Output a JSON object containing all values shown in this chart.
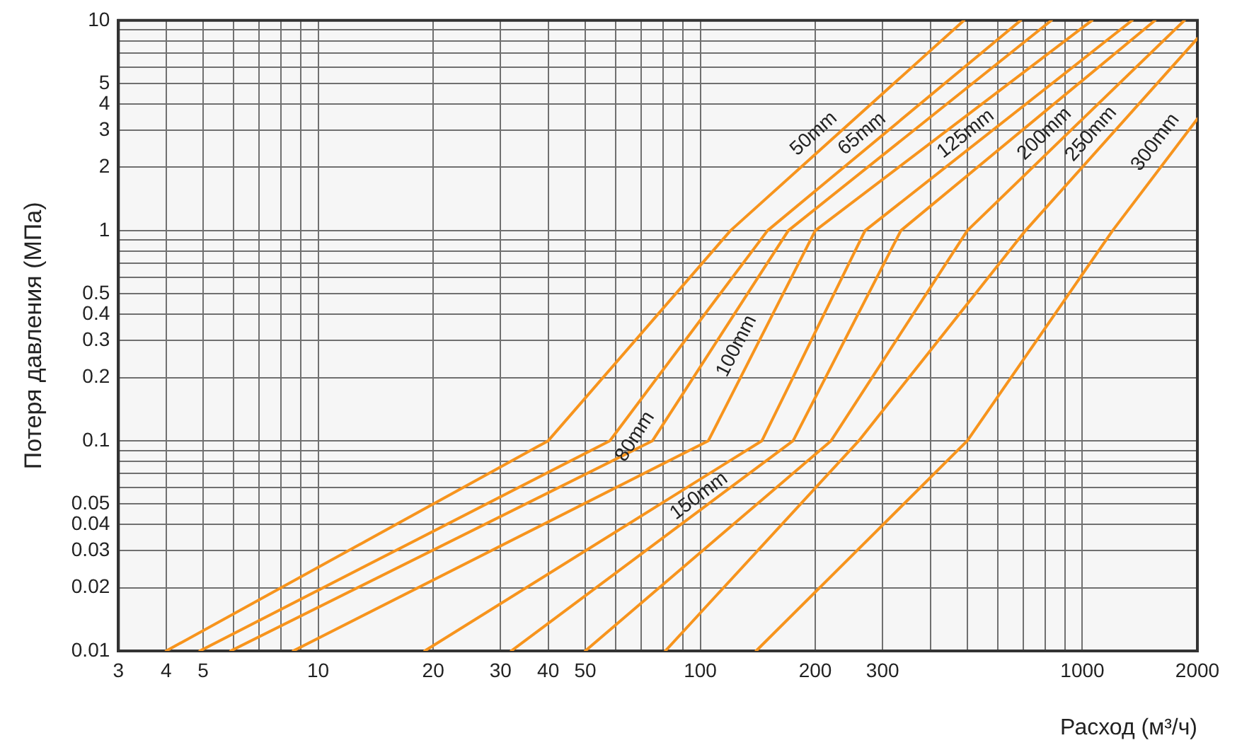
{
  "chart_data": {
    "type": "line",
    "xlabel": "Расход (м³/ч)",
    "ylabel": "Потеря давления (МПа)",
    "log": "xy",
    "grid": true,
    "xlim": [
      3,
      2000
    ],
    "ylim": [
      0.01,
      10
    ],
    "xticks": [
      3,
      4,
      5,
      {
        "value": 6,
        "label": null
      },
      {
        "value": 7,
        "label": null
      },
      {
        "value": 8,
        "label": null
      },
      {
        "value": 9,
        "label": null
      },
      10,
      20,
      30,
      40,
      50,
      {
        "value": 60,
        "label": null
      },
      {
        "value": 70,
        "label": null
      },
      {
        "value": 80,
        "label": null
      },
      {
        "value": 90,
        "label": null
      },
      100,
      200,
      300,
      {
        "value": 400,
        "label": null
      },
      {
        "value": 500,
        "label": null
      },
      {
        "value": 600,
        "label": null
      },
      {
        "value": 700,
        "label": null
      },
      {
        "value": 800,
        "label": null
      },
      {
        "value": 900,
        "label": null
      },
      1000,
      2000
    ],
    "yticks": [
      0.01,
      0.02,
      0.03,
      0.04,
      0.05,
      {
        "value": 0.06,
        "label": null
      },
      {
        "value": 0.07,
        "label": null
      },
      {
        "value": 0.08,
        "label": null
      },
      {
        "value": 0.09,
        "label": null
      },
      0.1,
      0.2,
      0.3,
      0.4,
      0.5,
      {
        "value": 0.6,
        "label": null
      },
      {
        "value": 0.7,
        "label": null
      },
      {
        "value": 0.8,
        "label": null
      },
      {
        "value": 0.9,
        "label": null
      },
      1,
      2,
      3,
      4,
      5,
      {
        "value": 6,
        "label": null
      },
      {
        "value": 7,
        "label": null
      },
      {
        "value": 8,
        "label": null
      },
      {
        "value": 9,
        "label": null
      },
      10
    ],
    "series": [
      {
        "name": "50mm",
        "color": "#f7941d",
        "x": [
          4,
          40,
          120,
          490
        ],
        "values": [
          0.01,
          0.1,
          1,
          10
        ]
      },
      {
        "name": "65mm",
        "color": "#f7941d",
        "x": [
          4.9,
          58,
          150,
          690
        ],
        "values": [
          0.01,
          0.1,
          1,
          10
        ]
      },
      {
        "name": "80mm",
        "color": "#f7941d",
        "x": [
          5.9,
          75,
          170,
          830
        ],
        "values": [
          0.01,
          0.1,
          1,
          10
        ]
      },
      {
        "name": "100mm",
        "color": "#f7941d",
        "x": [
          8.6,
          105,
          200,
          1060
        ],
        "values": [
          0.01,
          0.1,
          1,
          10
        ]
      },
      {
        "name": "125mm",
        "color": "#f7941d",
        "x": [
          19,
          145,
          270,
          1350
        ],
        "values": [
          0.01,
          0.1,
          1,
          10
        ]
      },
      {
        "name": "150mm",
        "color": "#f7941d",
        "x": [
          32,
          175,
          335,
          1550
        ],
        "values": [
          0.01,
          0.1,
          1,
          10
        ]
      },
      {
        "name": "200mm",
        "color": "#f7941d",
        "x": [
          50,
          220,
          500,
          1850
        ],
        "values": [
          0.01,
          0.1,
          1,
          10
        ]
      },
      {
        "name": "250mm",
        "color": "#f7941d",
        "x": [
          81,
          260,
          710,
          2000
        ],
        "values": [
          0.01,
          0.1,
          1,
          8.2
        ]
      },
      {
        "name": "300mm",
        "color": "#f7941d",
        "x": [
          140,
          500,
          1200,
          2000
        ],
        "values": [
          0.01,
          0.1,
          1,
          3.4
        ]
      }
    ]
  }
}
